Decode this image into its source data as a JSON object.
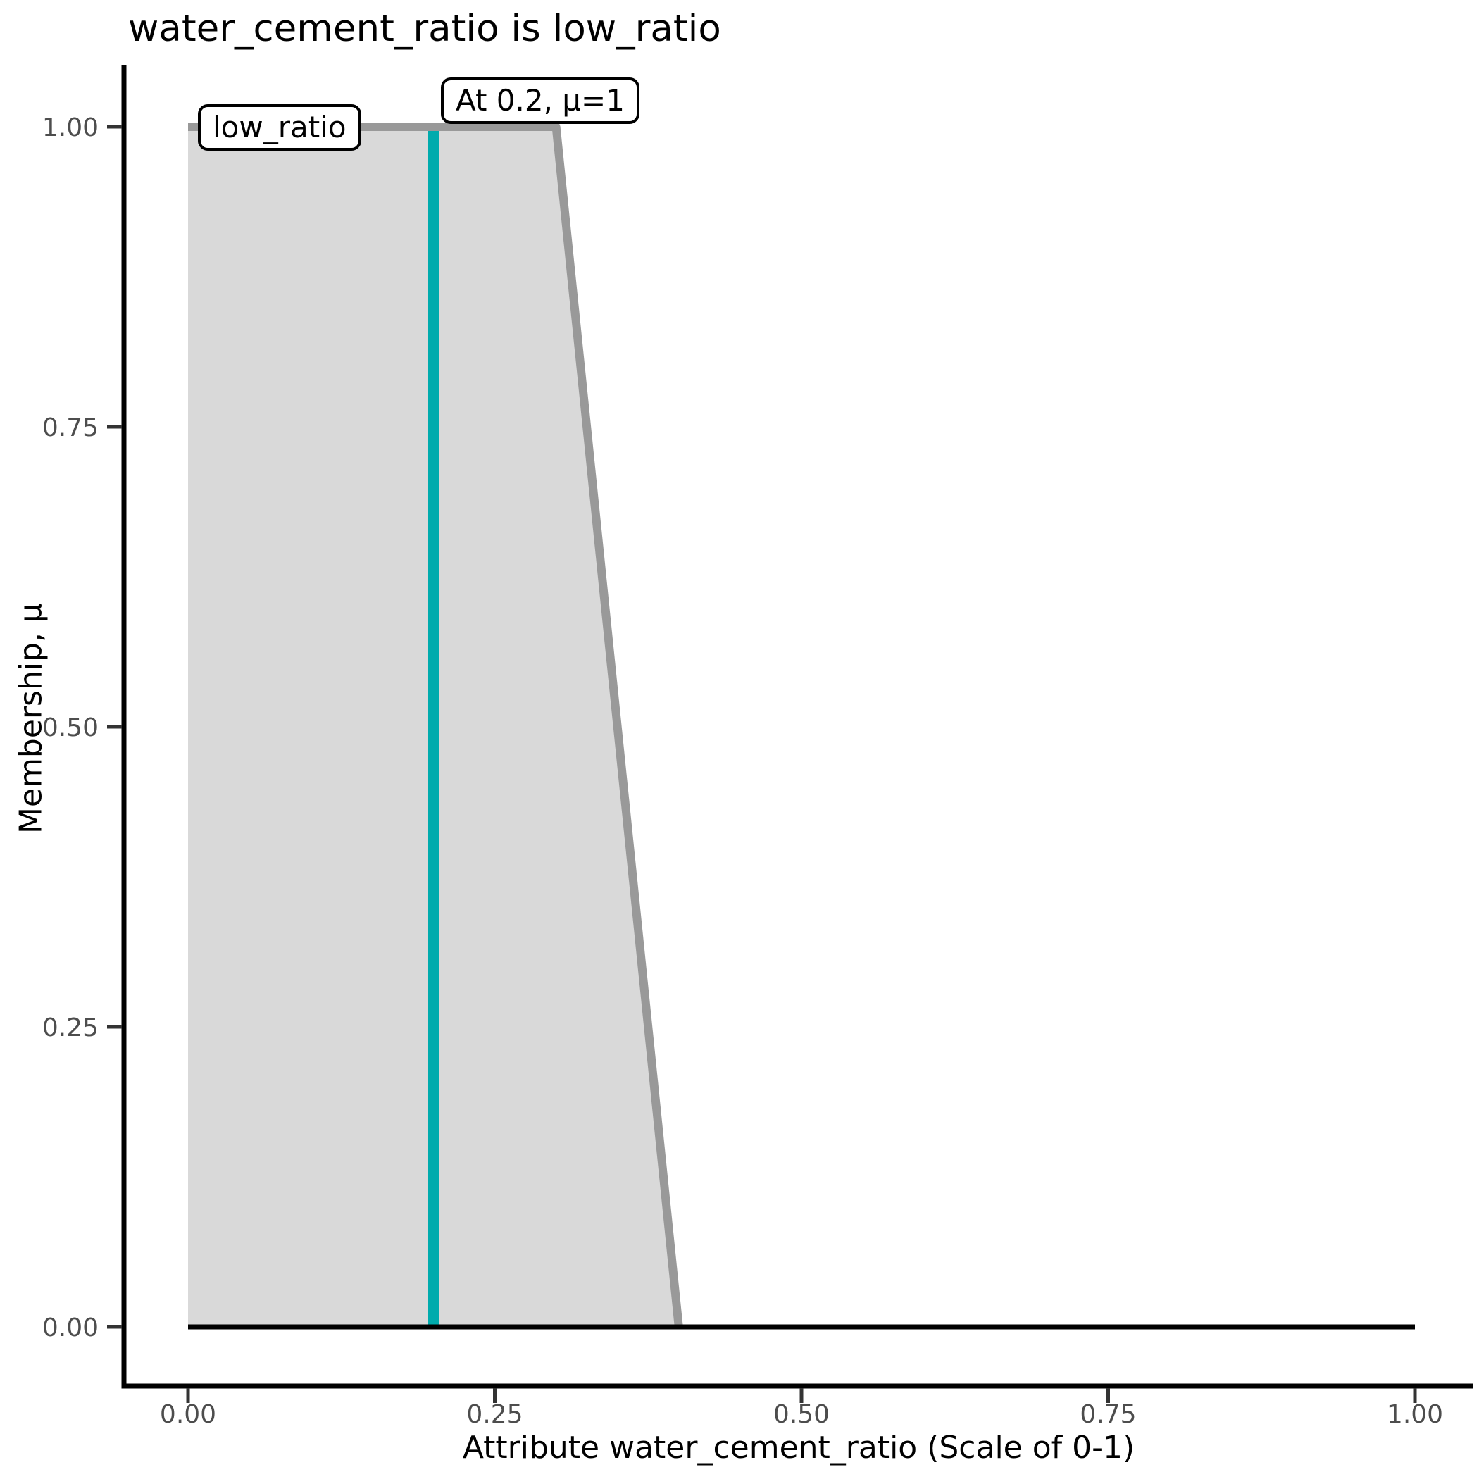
{
  "title": "water_cement_ratio is low_ratio",
  "annotations": {
    "set_label": "low_ratio",
    "point_label": "At 0.2, μ=1"
  },
  "colors": {
    "area_fill": "#D9D9D9",
    "mf_line": "#999999",
    "highlight_line": "#00ABAD",
    "baseline": "#000000",
    "axis_line": "#000000",
    "tick_mark": "#333333",
    "tick_text": "#4D4D4D",
    "text": "#000000",
    "label_box_bg": "#FFFFFF",
    "label_box_border": "#000000"
  },
  "chart_data": {
    "type": "area",
    "title": "water_cement_ratio is low_ratio",
    "xlabel": "Attribute water_cement_ratio (Scale of 0-1)",
    "ylabel": "Membership, μ",
    "xlim": [
      0,
      1
    ],
    "ylim": [
      0,
      1
    ],
    "grid": false,
    "legend": "none",
    "x_ticks": [
      {
        "v": 0.0,
        "label": "0.00"
      },
      {
        "v": 0.25,
        "label": "0.25"
      },
      {
        "v": 0.5,
        "label": "0.50"
      },
      {
        "v": 0.75,
        "label": "0.75"
      },
      {
        "v": 1.0,
        "label": "1.00"
      }
    ],
    "y_ticks": [
      {
        "v": 0.0,
        "label": "0.00"
      },
      {
        "v": 0.25,
        "label": "0.25"
      },
      {
        "v": 0.5,
        "label": "0.50"
      },
      {
        "v": 0.75,
        "label": "0.75"
      },
      {
        "v": 1.0,
        "label": "1.00"
      }
    ],
    "series": [
      {
        "name": "low_ratio",
        "role": "fuzzy-membership-function",
        "points": [
          {
            "x": 0.0,
            "mu": 1
          },
          {
            "x": 0.3,
            "mu": 1
          },
          {
            "x": 0.4,
            "mu": 0
          },
          {
            "x": 1.0,
            "mu": 0
          }
        ]
      }
    ],
    "highlight": {
      "x": 0.2,
      "mu": 1,
      "label": "At 0.2, μ=1"
    }
  }
}
